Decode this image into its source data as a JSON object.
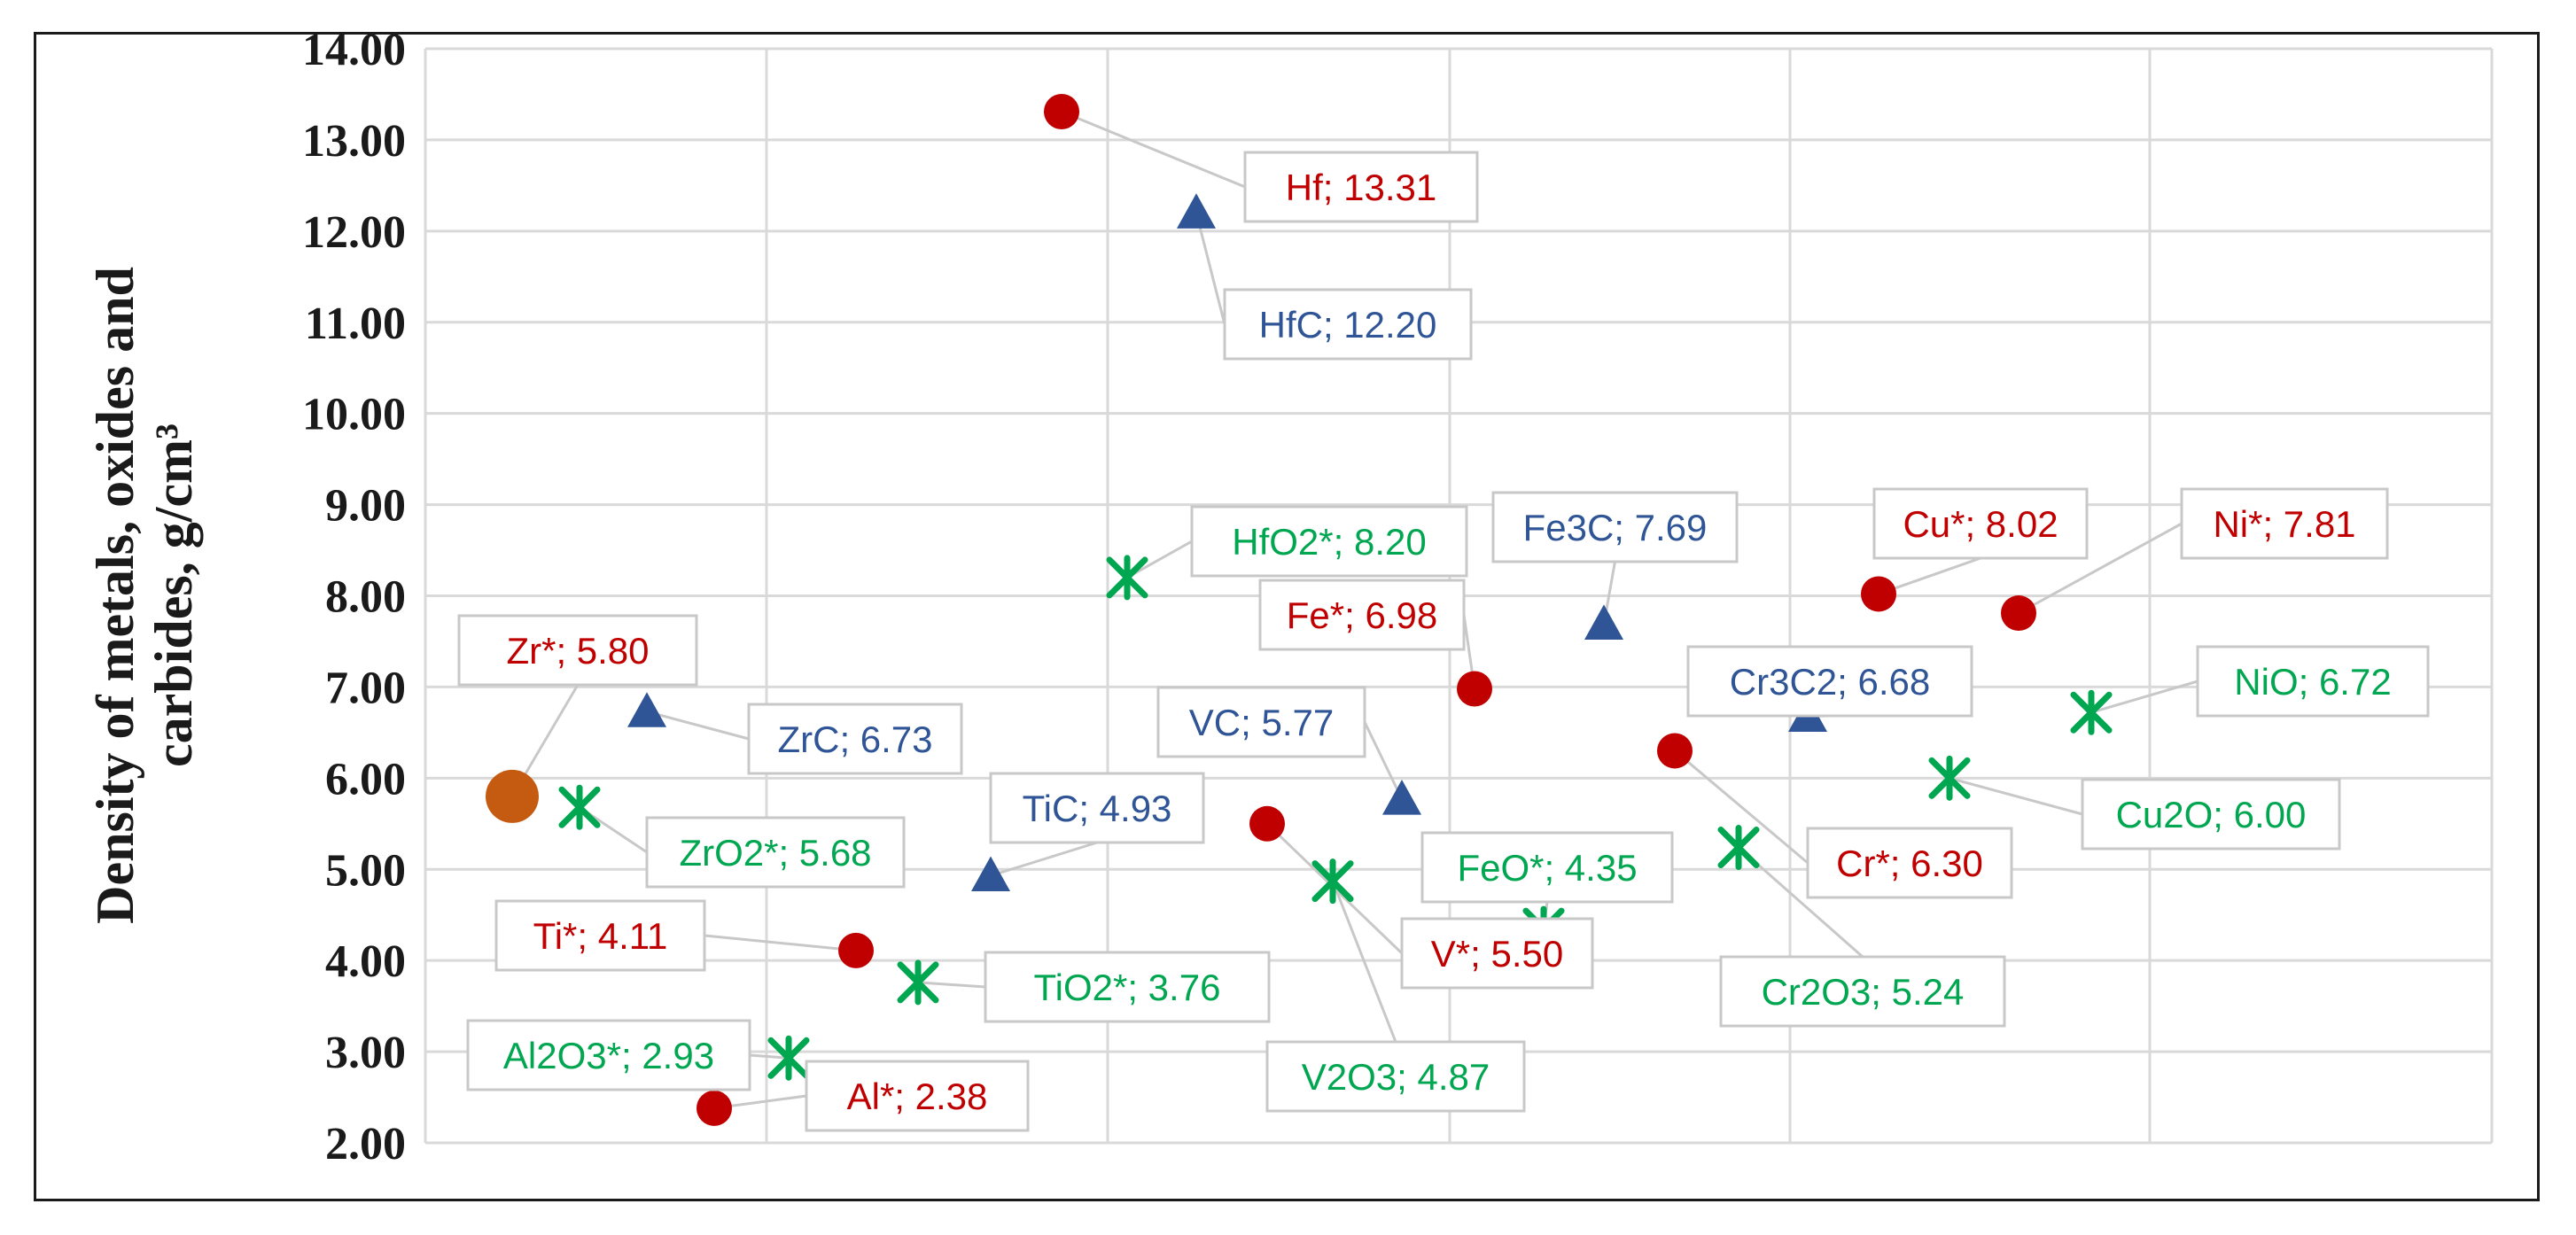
{
  "chart_data": {
    "type": "scatter",
    "ylabel_lines": [
      "Density of metals, oxides and",
      "carbides,  g/cm³"
    ],
    "ylim": [
      2,
      14
    ],
    "y_ticks": [
      "2.00",
      "3.00",
      "4.00",
      "5.00",
      "6.00",
      "7.00",
      "8.00",
      "9.00",
      "10.00",
      "11.00",
      "12.00",
      "13.00",
      "14.00"
    ],
    "grid": true,
    "colors": {
      "metal": "#c00000",
      "carbide": "#2f5597",
      "oxide": "#00a650"
    },
    "points": [
      {
        "label": "Zr*; 5.80",
        "y": 5.8,
        "group": "metal",
        "marker": "circle-large"
      },
      {
        "label": "ZrC; 6.73",
        "y": 6.73,
        "group": "carbide",
        "marker": "triangle"
      },
      {
        "label": "ZrO2*; 5.68",
        "y": 5.68,
        "group": "oxide",
        "marker": "asterisk"
      },
      {
        "label": "Al*; 2.38",
        "y": 2.38,
        "group": "metal",
        "marker": "circle"
      },
      {
        "label": "Al2O3*; 2.93",
        "y": 2.93,
        "group": "oxide",
        "marker": "asterisk"
      },
      {
        "label": "Ti*; 4.11",
        "y": 4.11,
        "group": "metal",
        "marker": "circle"
      },
      {
        "label": "TiO2*; 3.76",
        "y": 3.76,
        "group": "oxide",
        "marker": "asterisk"
      },
      {
        "label": "TiC; 4.93",
        "y": 4.93,
        "group": "carbide",
        "marker": "triangle"
      },
      {
        "label": "Hf; 13.31",
        "y": 13.31,
        "group": "metal",
        "marker": "circle"
      },
      {
        "label": "HfO2*; 8.20",
        "y": 8.2,
        "group": "oxide",
        "marker": "asterisk"
      },
      {
        "label": "HfC; 12.20",
        "y": 12.2,
        "group": "carbide",
        "marker": "triangle"
      },
      {
        "label": "V*; 5.50",
        "y": 5.5,
        "group": "metal",
        "marker": "circle"
      },
      {
        "label": "V2O3; 4.87",
        "y": 4.87,
        "group": "oxide",
        "marker": "asterisk"
      },
      {
        "label": "VC; 5.77",
        "y": 5.77,
        "group": "carbide",
        "marker": "triangle"
      },
      {
        "label": "Fe*; 6.98",
        "y": 6.98,
        "group": "metal",
        "marker": "circle"
      },
      {
        "label": "FeO*; 4.35",
        "y": 4.35,
        "group": "oxide",
        "marker": "asterisk"
      },
      {
        "label": "Fe3C; 7.69",
        "y": 7.69,
        "group": "carbide",
        "marker": "triangle"
      },
      {
        "label": "Cr*; 6.30",
        "y": 6.3,
        "group": "metal",
        "marker": "circle"
      },
      {
        "label": "Cr2O3; 5.24",
        "y": 5.24,
        "group": "oxide",
        "marker": "asterisk"
      },
      {
        "label": "Cr3C2; 6.68",
        "y": 6.68,
        "group": "carbide",
        "marker": "triangle"
      },
      {
        "label": "Cu*; 8.02",
        "y": 8.02,
        "group": "metal",
        "marker": "circle"
      },
      {
        "label": "Cu2O; 6.00",
        "y": 6.0,
        "group": "oxide",
        "marker": "asterisk"
      },
      {
        "label": "Ni*; 7.81",
        "y": 7.81,
        "group": "metal",
        "marker": "circle"
      },
      {
        "label": "NiO; 6.72",
        "y": 6.72,
        "group": "oxide",
        "marker": "asterisk"
      }
    ]
  }
}
